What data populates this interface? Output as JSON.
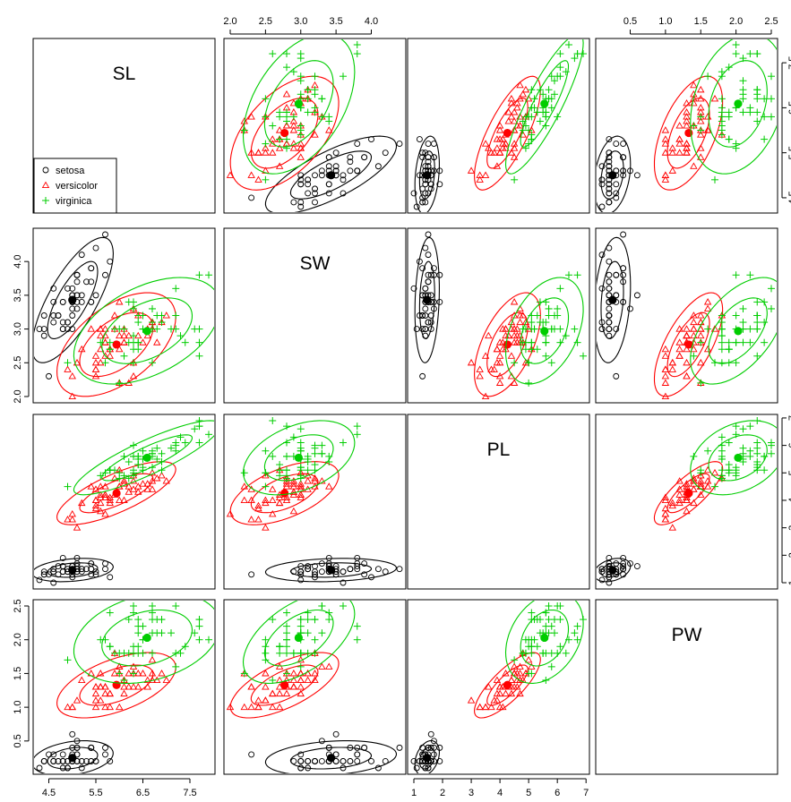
{
  "chart_data": {
    "type": "scatter",
    "variables": [
      "SL",
      "SW",
      "PL",
      "PW"
    ],
    "ranges": {
      "SL": [
        4.3,
        7.9
      ],
      "SW": [
        2.0,
        4.4
      ],
      "PL": [
        1.0,
        6.9
      ],
      "PW": [
        0.1,
        2.5
      ]
    },
    "ticks": {
      "SL": [
        "4.5",
        "5.5",
        "6.5",
        "7.5"
      ],
      "SW": [
        "2.0",
        "2.5",
        "3.0",
        "3.5",
        "4.0"
      ],
      "PL": [
        "1",
        "2",
        "3",
        "4",
        "5",
        "6",
        "7"
      ],
      "PW": [
        "0.5",
        "1.0",
        "1.5",
        "2.0",
        "2.5"
      ]
    },
    "legend": {
      "placement": "bottom-left of SL panel"
    },
    "series": [
      {
        "name": "setosa",
        "color": "#000000",
        "marker": "circle",
        "centroid": [
          5.0,
          3.43,
          1.46,
          0.25
        ],
        "points": [
          [
            5.1,
            3.5,
            1.4,
            0.2
          ],
          [
            4.9,
            3.0,
            1.4,
            0.2
          ],
          [
            4.7,
            3.2,
            1.3,
            0.2
          ],
          [
            4.6,
            3.1,
            1.5,
            0.2
          ],
          [
            5.0,
            3.6,
            1.4,
            0.2
          ],
          [
            5.4,
            3.9,
            1.7,
            0.4
          ],
          [
            4.6,
            3.4,
            1.4,
            0.3
          ],
          [
            5.0,
            3.4,
            1.5,
            0.2
          ],
          [
            4.4,
            2.9,
            1.4,
            0.2
          ],
          [
            4.9,
            3.1,
            1.5,
            0.1
          ],
          [
            5.4,
            3.7,
            1.5,
            0.2
          ],
          [
            4.8,
            3.4,
            1.6,
            0.2
          ],
          [
            4.8,
            3.0,
            1.4,
            0.1
          ],
          [
            4.3,
            3.0,
            1.1,
            0.1
          ],
          [
            5.8,
            4.0,
            1.2,
            0.2
          ],
          [
            5.7,
            4.4,
            1.5,
            0.4
          ],
          [
            5.4,
            3.9,
            1.3,
            0.4
          ],
          [
            5.1,
            3.5,
            1.4,
            0.3
          ],
          [
            5.7,
            3.8,
            1.7,
            0.3
          ],
          [
            5.1,
            3.8,
            1.5,
            0.3
          ],
          [
            5.4,
            3.4,
            1.7,
            0.2
          ],
          [
            5.1,
            3.7,
            1.5,
            0.4
          ],
          [
            4.6,
            3.6,
            1.0,
            0.2
          ],
          [
            5.1,
            3.3,
            1.7,
            0.5
          ],
          [
            4.8,
            3.4,
            1.9,
            0.2
          ],
          [
            5.0,
            3.0,
            1.6,
            0.2
          ],
          [
            5.0,
            3.4,
            1.6,
            0.4
          ],
          [
            5.2,
            3.5,
            1.5,
            0.2
          ],
          [
            5.2,
            3.4,
            1.4,
            0.2
          ],
          [
            4.7,
            3.2,
            1.6,
            0.2
          ],
          [
            4.8,
            3.1,
            1.6,
            0.2
          ],
          [
            5.4,
            3.4,
            1.5,
            0.4
          ],
          [
            5.2,
            4.1,
            1.5,
            0.1
          ],
          [
            5.5,
            4.2,
            1.4,
            0.2
          ],
          [
            4.9,
            3.1,
            1.5,
            0.2
          ],
          [
            5.0,
            3.2,
            1.2,
            0.2
          ],
          [
            5.5,
            3.5,
            1.3,
            0.2
          ],
          [
            4.9,
            3.6,
            1.4,
            0.1
          ],
          [
            4.4,
            3.0,
            1.3,
            0.2
          ],
          [
            5.1,
            3.4,
            1.5,
            0.2
          ],
          [
            5.0,
            3.5,
            1.3,
            0.3
          ],
          [
            4.5,
            2.3,
            1.3,
            0.3
          ],
          [
            4.4,
            3.2,
            1.3,
            0.2
          ],
          [
            5.0,
            3.5,
            1.6,
            0.6
          ],
          [
            5.1,
            3.8,
            1.9,
            0.4
          ],
          [
            4.8,
            3.0,
            1.4,
            0.3
          ],
          [
            5.1,
            3.8,
            1.6,
            0.2
          ],
          [
            4.6,
            3.2,
            1.4,
            0.2
          ],
          [
            5.3,
            3.7,
            1.5,
            0.2
          ],
          [
            5.0,
            3.3,
            1.4,
            0.2
          ]
        ]
      },
      {
        "name": "versicolor",
        "color": "#ff0000",
        "marker": "triangle",
        "centroid": [
          5.94,
          2.77,
          4.26,
          1.33
        ],
        "points": [
          [
            7.0,
            3.2,
            4.7,
            1.4
          ],
          [
            6.4,
            3.2,
            4.5,
            1.5
          ],
          [
            6.9,
            3.1,
            4.9,
            1.5
          ],
          [
            5.5,
            2.3,
            4.0,
            1.3
          ],
          [
            6.5,
            2.8,
            4.6,
            1.5
          ],
          [
            5.7,
            2.8,
            4.5,
            1.3
          ],
          [
            6.3,
            3.3,
            4.7,
            1.6
          ],
          [
            4.9,
            2.4,
            3.3,
            1.0
          ],
          [
            6.6,
            2.9,
            4.6,
            1.3
          ],
          [
            5.2,
            2.7,
            3.9,
            1.4
          ],
          [
            5.0,
            2.0,
            3.5,
            1.0
          ],
          [
            5.9,
            3.0,
            4.2,
            1.5
          ],
          [
            6.0,
            2.2,
            4.0,
            1.0
          ],
          [
            6.1,
            2.9,
            4.7,
            1.4
          ],
          [
            5.6,
            2.9,
            3.6,
            1.3
          ],
          [
            6.7,
            3.1,
            4.4,
            1.4
          ],
          [
            5.6,
            3.0,
            4.5,
            1.5
          ],
          [
            5.8,
            2.7,
            4.1,
            1.0
          ],
          [
            6.2,
            2.2,
            4.5,
            1.5
          ],
          [
            5.6,
            2.5,
            3.9,
            1.1
          ],
          [
            5.9,
            3.2,
            4.8,
            1.8
          ],
          [
            6.1,
            2.8,
            4.0,
            1.3
          ],
          [
            6.3,
            2.5,
            4.9,
            1.5
          ],
          [
            6.1,
            2.8,
            4.7,
            1.2
          ],
          [
            6.4,
            2.9,
            4.3,
            1.3
          ],
          [
            6.6,
            3.0,
            4.4,
            1.4
          ],
          [
            6.8,
            2.8,
            4.8,
            1.4
          ],
          [
            6.7,
            3.0,
            5.0,
            1.7
          ],
          [
            6.0,
            2.9,
            4.5,
            1.5
          ],
          [
            5.7,
            2.6,
            3.5,
            1.0
          ],
          [
            5.5,
            2.4,
            3.8,
            1.1
          ],
          [
            5.5,
            2.4,
            3.7,
            1.0
          ],
          [
            5.8,
            2.7,
            3.9,
            1.2
          ],
          [
            6.0,
            2.7,
            5.1,
            1.6
          ],
          [
            5.4,
            3.0,
            4.5,
            1.5
          ],
          [
            6.0,
            3.4,
            4.5,
            1.6
          ],
          [
            6.7,
            3.1,
            4.7,
            1.5
          ],
          [
            6.3,
            2.3,
            4.4,
            1.3
          ],
          [
            5.6,
            3.0,
            4.1,
            1.3
          ],
          [
            5.5,
            2.5,
            4.0,
            1.3
          ],
          [
            5.5,
            2.6,
            4.4,
            1.2
          ],
          [
            6.1,
            3.0,
            4.6,
            1.4
          ],
          [
            5.8,
            2.6,
            4.0,
            1.2
          ],
          [
            5.0,
            2.3,
            3.3,
            1.0
          ],
          [
            5.6,
            2.7,
            4.2,
            1.3
          ],
          [
            5.7,
            3.0,
            4.2,
            1.2
          ],
          [
            5.7,
            2.9,
            4.2,
            1.3
          ],
          [
            6.2,
            2.9,
            4.3,
            1.3
          ],
          [
            5.1,
            2.5,
            3.0,
            1.1
          ],
          [
            5.7,
            2.8,
            4.1,
            1.3
          ]
        ]
      },
      {
        "name": "virginica",
        "color": "#00cd00",
        "marker": "plus",
        "centroid": [
          6.59,
          2.97,
          5.55,
          2.03
        ],
        "points": [
          [
            6.3,
            3.3,
            6.0,
            2.5
          ],
          [
            5.8,
            2.7,
            5.1,
            1.9
          ],
          [
            7.1,
            3.0,
            5.9,
            2.1
          ],
          [
            6.3,
            2.9,
            5.6,
            1.8
          ],
          [
            6.5,
            3.0,
            5.8,
            2.2
          ],
          [
            7.6,
            3.0,
            6.6,
            2.1
          ],
          [
            4.9,
            2.5,
            4.5,
            1.7
          ],
          [
            7.3,
            2.9,
            6.3,
            1.8
          ],
          [
            6.7,
            2.5,
            5.8,
            1.8
          ],
          [
            7.2,
            3.6,
            6.1,
            2.5
          ],
          [
            6.5,
            3.2,
            5.1,
            2.0
          ],
          [
            6.4,
            2.7,
            5.3,
            1.9
          ],
          [
            6.8,
            3.0,
            5.5,
            2.1
          ],
          [
            5.7,
            2.5,
            5.0,
            2.0
          ],
          [
            5.8,
            2.8,
            5.1,
            2.4
          ],
          [
            6.4,
            3.2,
            5.3,
            2.3
          ],
          [
            6.5,
            3.0,
            5.5,
            1.8
          ],
          [
            7.7,
            3.8,
            6.7,
            2.2
          ],
          [
            7.7,
            2.6,
            6.9,
            2.3
          ],
          [
            6.0,
            2.2,
            5.0,
            1.5
          ],
          [
            6.9,
            3.2,
            5.7,
            2.3
          ],
          [
            5.6,
            2.8,
            4.9,
            2.0
          ],
          [
            7.7,
            2.8,
            6.7,
            2.0
          ],
          [
            6.3,
            2.7,
            4.9,
            1.8
          ],
          [
            6.7,
            3.3,
            5.7,
            2.1
          ],
          [
            7.2,
            3.2,
            6.0,
            1.8
          ],
          [
            6.2,
            2.8,
            4.8,
            1.8
          ],
          [
            6.1,
            3.0,
            4.9,
            1.8
          ],
          [
            6.4,
            2.8,
            5.6,
            2.1
          ],
          [
            7.2,
            3.0,
            5.8,
            1.6
          ],
          [
            7.4,
            2.8,
            6.1,
            1.9
          ],
          [
            7.9,
            3.8,
            6.4,
            2.0
          ],
          [
            6.4,
            2.8,
            5.6,
            2.2
          ],
          [
            6.3,
            2.8,
            5.1,
            1.5
          ],
          [
            6.1,
            2.6,
            5.6,
            1.4
          ],
          [
            7.7,
            3.0,
            6.1,
            2.3
          ],
          [
            6.3,
            3.4,
            5.6,
            2.4
          ],
          [
            6.4,
            3.1,
            5.5,
            1.8
          ],
          [
            6.0,
            3.0,
            4.8,
            1.8
          ],
          [
            6.9,
            3.1,
            5.4,
            2.1
          ],
          [
            6.7,
            3.1,
            5.6,
            2.4
          ],
          [
            6.9,
            3.1,
            5.1,
            2.3
          ],
          [
            5.8,
            2.7,
            5.1,
            1.9
          ],
          [
            6.8,
            3.2,
            5.9,
            2.3
          ],
          [
            6.7,
            3.3,
            5.7,
            2.5
          ],
          [
            6.7,
            3.0,
            5.2,
            2.3
          ],
          [
            6.3,
            2.5,
            5.0,
            1.9
          ],
          [
            6.5,
            3.0,
            5.2,
            2.0
          ],
          [
            6.2,
            3.4,
            5.4,
            2.3
          ],
          [
            5.9,
            3.0,
            5.1,
            1.8
          ]
        ]
      }
    ]
  }
}
